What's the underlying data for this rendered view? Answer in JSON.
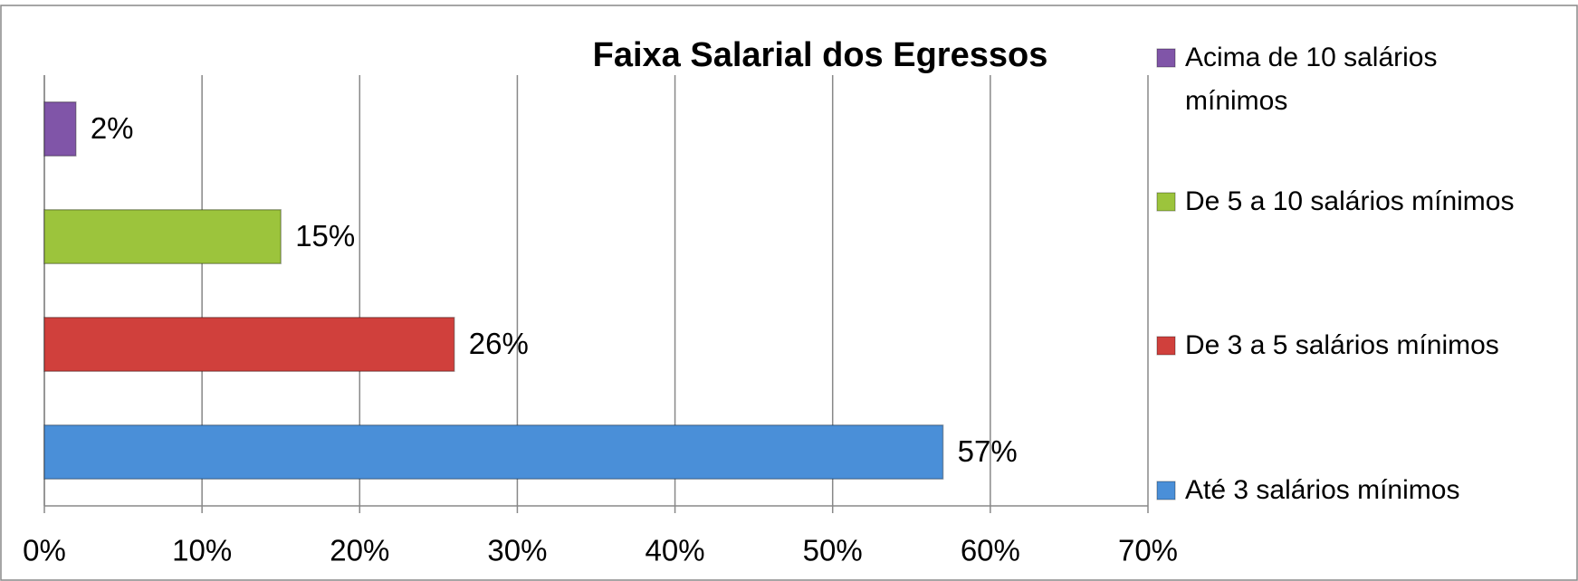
{
  "chart_data": {
    "type": "bar",
    "orientation": "horizontal",
    "title": "Faixa Salarial dos Egressos",
    "categories": [
      "Até 3 salários mínimos",
      "De 3 a 5 salários mínimos",
      "De 5 a 10 salários mínimos",
      "Acima de 10 salários mínimos"
    ],
    "values": [
      57,
      26,
      15,
      2
    ],
    "value_labels": [
      "57%",
      "26%",
      "15%",
      "2%"
    ],
    "colors": [
      "#4a8fd8",
      "#d0403c",
      "#9cc43c",
      "#8055a8"
    ],
    "xlim": [
      0,
      70
    ],
    "xticks": [
      {
        "value": 0,
        "label": "0%"
      },
      {
        "value": 10,
        "label": "10%"
      },
      {
        "value": 20,
        "label": "20%"
      },
      {
        "value": 30,
        "label": "30%"
      },
      {
        "value": 40,
        "label": "40%"
      },
      {
        "value": 50,
        "label": "50%"
      },
      {
        "value": 60,
        "label": "60%"
      },
      {
        "value": 70,
        "label": "70%"
      }
    ],
    "grid": true,
    "legend": "right"
  }
}
